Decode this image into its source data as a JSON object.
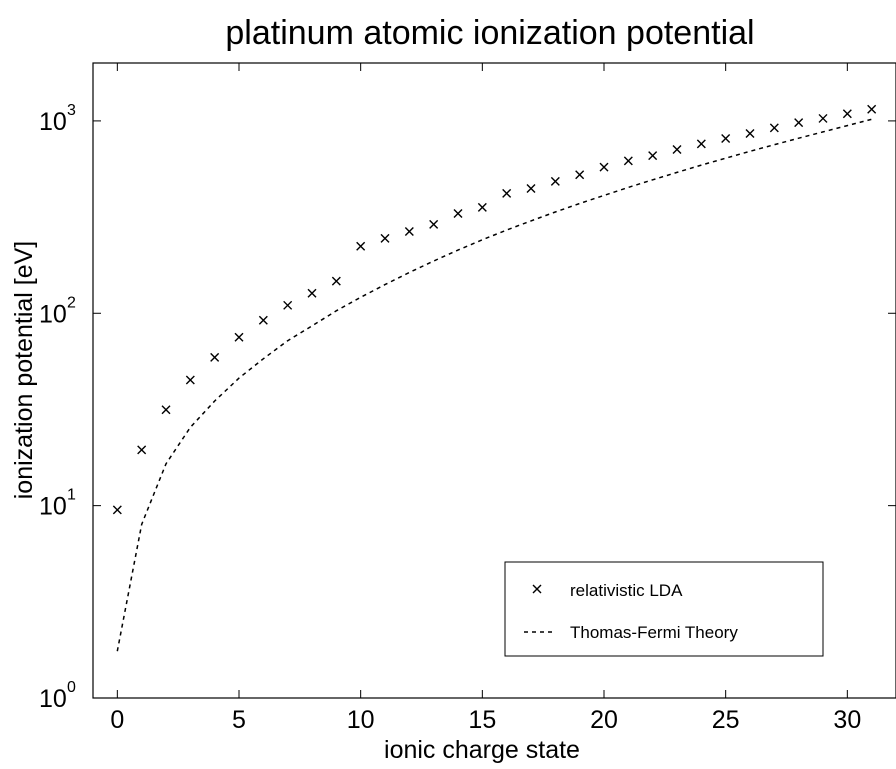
{
  "chart_data": {
    "type": "scatter",
    "title": "platinum atomic ionization potential",
    "xlabel": "ionic charge state",
    "ylabel": "ionization potential [eV]",
    "xlim": [
      -1,
      32
    ],
    "ylim": [
      1,
      2000
    ],
    "yscale": "log",
    "grid": false,
    "legend_position": "bottom-right",
    "x_ticks": [
      0,
      5,
      10,
      15,
      20,
      25,
      30
    ],
    "x_tick_labels": [
      "0",
      "5",
      "10",
      "15",
      "20",
      "25",
      "30"
    ],
    "y_ticks": [
      1,
      10,
      100,
      1000
    ],
    "y_tick_base": "10",
    "y_tick_exponents": [
      "0",
      "1",
      "2",
      "3"
    ],
    "series": [
      {
        "name": "relativistic LDA",
        "marker": "x",
        "x": [
          0,
          1,
          2,
          3,
          4,
          5,
          6,
          7,
          8,
          9,
          10,
          11,
          12,
          13,
          14,
          15,
          16,
          17,
          18,
          19,
          20,
          21,
          22,
          23,
          24,
          25,
          26,
          27,
          28,
          29,
          30,
          31
        ],
        "y": [
          9.5,
          19.5,
          31.5,
          45,
          59,
          75,
          92,
          110,
          127,
          147,
          223,
          245,
          266,
          290,
          330,
          355,
          420,
          445,
          485,
          525,
          575,
          620,
          660,
          710,
          760,
          810,
          860,
          920,
          980,
          1030,
          1090,
          1150
        ]
      },
      {
        "name": "Thomas-Fermi Theory",
        "line_style": "dashed",
        "x": [
          0,
          1,
          2,
          3,
          4,
          5,
          6,
          7,
          8,
          9,
          10,
          11,
          12,
          13,
          14,
          15,
          16,
          17,
          18,
          19,
          20,
          21,
          22,
          23,
          24,
          25,
          26,
          27,
          28,
          29,
          30,
          31
        ],
        "y": [
          1.75,
          8.0,
          16.5,
          25.5,
          35,
          46,
          58,
          72,
          86,
          103,
          121,
          141,
          163,
          187,
          213,
          241,
          271,
          302,
          336,
          372,
          410,
          451,
          494,
          540,
          589,
          640,
          695,
          752,
          813,
          877,
          945,
          1020
        ]
      }
    ]
  }
}
